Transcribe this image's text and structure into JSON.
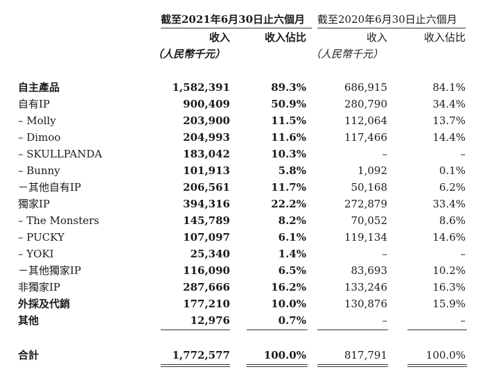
{
  "header": {
    "period_2021": "截至2021年6月30日止六個月",
    "period_2020": "截至2020年6月30日止六個月",
    "col_revenue": "收入",
    "col_share": "收入佔比",
    "unit": "（人民幣千元）"
  },
  "rows": [
    {
      "label": "自主產品",
      "v2021": "1,582,391",
      "p2021": "89.3%",
      "v2020": "686,915",
      "p2020": "84.1%"
    },
    {
      "label": "自有IP",
      "v2021": "900,409",
      "p2021": "50.9%",
      "v2020": "280,790",
      "p2020": "34.4%"
    },
    {
      "label": "– Molly",
      "v2021": "203,900",
      "p2021": "11.5%",
      "v2020": "112,064",
      "p2020": "13.7%"
    },
    {
      "label": "– Dimoo",
      "v2021": "204,993",
      "p2021": "11.6%",
      "v2020": "117,466",
      "p2020": "14.4%"
    },
    {
      "label": "– SKULLPANDA",
      "v2021": "183,042",
      "p2021": "10.3%",
      "v2020": "–",
      "p2020": "–"
    },
    {
      "label": "– Bunny",
      "v2021": "101,913",
      "p2021": "5.8%",
      "v2020": "1,092",
      "p2020": "0.1%"
    },
    {
      "label": "－其他自有IP",
      "v2021": "206,561",
      "p2021": "11.7%",
      "v2020": "50,168",
      "p2020": "6.2%"
    },
    {
      "label": "獨家IP",
      "v2021": "394,316",
      "p2021": "22.2%",
      "v2020": "272,879",
      "p2020": "33.4%"
    },
    {
      "label": "– The Monsters",
      "v2021": "145,789",
      "p2021": "8.2%",
      "v2020": "70,052",
      "p2020": "8.6%"
    },
    {
      "label": "– PUCKY",
      "v2021": "107,097",
      "p2021": "6.1%",
      "v2020": "119,134",
      "p2020": "14.6%"
    },
    {
      "label": "– YOKI",
      "v2021": "25,340",
      "p2021": "1.4%",
      "v2020": "–",
      "p2020": "–"
    },
    {
      "label": "－其他獨家IP",
      "v2021": "116,090",
      "p2021": "6.5%",
      "v2020": "83,693",
      "p2020": "10.2%"
    },
    {
      "label": "非獨家IP",
      "v2021": "287,666",
      "p2021": "16.2%",
      "v2020": "133,246",
      "p2020": "16.3%"
    },
    {
      "label": "外採及代銷",
      "v2021": "177,210",
      "p2021": "10.0%",
      "v2020": "130,876",
      "p2020": "15.9%"
    },
    {
      "label": "其他",
      "v2021": "12,976",
      "p2021": "0.7%",
      "v2020": "–",
      "p2020": "–"
    }
  ],
  "total": {
    "label": "合計",
    "v2021": "1,772,577",
    "p2021": "100.0%",
    "v2020": "817,791",
    "p2020": "100.0%"
  }
}
